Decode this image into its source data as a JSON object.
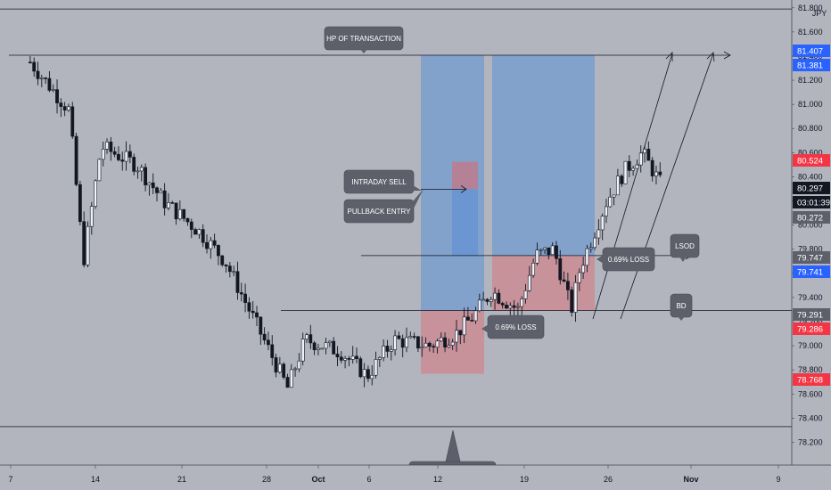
{
  "chart_data": {
    "type": "candlestick",
    "currency": "JPY",
    "y_axis": {
      "min": 78.1,
      "max": 81.85,
      "step": 0.2,
      "ticks": [
        78.2,
        78.4,
        78.6,
        78.8,
        79.0,
        79.2,
        79.4,
        79.6,
        79.8,
        80.0,
        80.2,
        80.4,
        80.6,
        80.8,
        81.0,
        81.2,
        81.4,
        81.6,
        81.8
      ]
    },
    "x_axis": {
      "min_day": -1.2,
      "max_day": 41.5,
      "ticks": [
        {
          "day": 0,
          "label": "7"
        },
        {
          "day": 7,
          "label": "14"
        },
        {
          "day": 14,
          "label": "21"
        },
        {
          "day": 21,
          "label": "28"
        },
        {
          "day": 24,
          "label": "Oct"
        },
        {
          "day": 29,
          "label": "6"
        },
        {
          "day": 35,
          "label": "12"
        },
        {
          "day": 42,
          "label": "19"
        },
        {
          "day": 49,
          "label": "26"
        },
        {
          "day": 56,
          "label": "Nov"
        },
        {
          "day": 63,
          "label": "9"
        }
      ]
    },
    "candle_count": 165,
    "price_path": [
      [
        0,
        81.35
      ],
      [
        2.2,
        80.95
      ],
      [
        3.0,
        79.7
      ],
      [
        4.0,
        80.65
      ],
      [
        6.0,
        80.5
      ],
      [
        7.5,
        80.2
      ],
      [
        9.5,
        79.95
      ],
      [
        11.0,
        79.7
      ],
      [
        12.5,
        79.25
      ],
      [
        14.5,
        78.65
      ],
      [
        15.5,
        79.05
      ],
      [
        17.5,
        78.95
      ],
      [
        19.0,
        78.75
      ],
      [
        20.5,
        79.05
      ],
      [
        22.5,
        79.0
      ],
      [
        24.0,
        79.1
      ],
      [
        25.0,
        79.25
      ],
      [
        26.0,
        79.45
      ],
      [
        27.5,
        79.3
      ],
      [
        28.5,
        79.75
      ],
      [
        29.5,
        79.8
      ],
      [
        30.5,
        79.3
      ],
      [
        31.0,
        79.65
      ],
      [
        32.5,
        80.2
      ],
      [
        33.5,
        80.45
      ],
      [
        34.5,
        80.6
      ],
      [
        35.5,
        80.35
      ]
    ],
    "horizontal_levels": [
      81.407,
      79.747,
      79.291,
      78.33
    ],
    "top_line_price": 81.79,
    "price_labels": [
      {
        "value": "81.407",
        "color": "#2962ff"
      },
      {
        "value": "81.381",
        "color": "#2962ff"
      },
      {
        "value": "80.524",
        "color": "#f23645"
      },
      {
        "value": "80.297",
        "color": "#131722"
      },
      {
        "value": "03:01:39",
        "color": "#131722"
      },
      {
        "value": "80.272",
        "color": "#5d606b"
      },
      {
        "value": "79.747",
        "color": "#5d606b"
      },
      {
        "value": "79.741",
        "color": "#2962ff"
      },
      {
        "value": "79.291",
        "color": "#5d606b"
      },
      {
        "value": "79.286",
        "color": "#f23645"
      },
      {
        "value": "78.768",
        "color": "#f23645"
      }
    ],
    "positions": [
      {
        "entry": 79.291,
        "target": 81.407,
        "stop": 78.768,
        "side": "long"
      },
      {
        "entry": 79.747,
        "target": 81.407,
        "stop": 79.291,
        "side": "long"
      },
      {
        "entry": 80.297,
        "target": 79.747,
        "stop": 80.524,
        "side": "short"
      }
    ],
    "annotations": [
      "HP OF TRANSACTION",
      "INTRADAY SELL",
      "PULLBACK ENTRY",
      "0.69% LOSS",
      "0.69% LOSS",
      "LSOD",
      "BD"
    ]
  }
}
